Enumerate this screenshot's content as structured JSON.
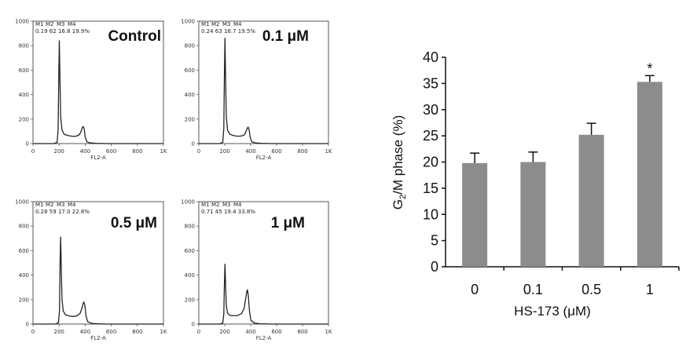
{
  "chart_data": [
    {
      "type": "line",
      "panel": "control",
      "label": "Control",
      "gate_names": [
        "M1",
        "M2",
        "M3",
        "M4"
      ],
      "gate_values": "0.19 62 16.8 19.9%",
      "xlabel": "FL2-A",
      "xlim": [
        0,
        1000
      ],
      "ylim": [
        0,
        1000
      ],
      "xticks": [
        "0",
        "200",
        "400",
        "600",
        "800",
        "1K"
      ],
      "yticks": [
        "0",
        "200",
        "400",
        "600",
        "800",
        "1000"
      ],
      "peaks": {
        "g1_position": 200,
        "g1_height": 840,
        "g2_position": 385,
        "g2_height": 140
      },
      "series": [
        {
          "x": [
            0,
            160,
            185,
            193,
            198,
            202,
            206,
            212,
            222,
            240,
            270,
            300,
            330,
            355,
            368,
            378,
            385,
            392,
            400,
            412,
            440,
            480,
            560,
            700,
            1000
          ],
          "y": [
            0,
            0,
            10,
            120,
            600,
            840,
            560,
            220,
            110,
            75,
            65,
            60,
            60,
            72,
            100,
            130,
            140,
            120,
            55,
            15,
            5,
            2,
            0,
            0,
            0
          ]
        }
      ]
    },
    {
      "type": "line",
      "panel": "0.1uM",
      "label": "0.1 μM",
      "gate_names": [
        "M1",
        "M2",
        "M3",
        "M4"
      ],
      "gate_values": "0.24 63 16.7 19.5%",
      "xlabel": "FL2-A",
      "xlim": [
        0,
        1000
      ],
      "ylim": [
        0,
        1000
      ],
      "xticks": [
        "0",
        "200",
        "400",
        "600",
        "800",
        "1K"
      ],
      "yticks": [
        "0",
        "200",
        "400",
        "600",
        "800",
        "1000"
      ],
      "peaks": {
        "g1_position": 200,
        "g1_height": 860,
        "g2_position": 380,
        "g2_height": 135
      },
      "series": [
        {
          "x": [
            0,
            160,
            185,
            193,
            198,
            202,
            206,
            212,
            222,
            240,
            270,
            300,
            330,
            352,
            365,
            374,
            380,
            388,
            396,
            408,
            440,
            480,
            560,
            700,
            1000
          ],
          "y": [
            0,
            0,
            10,
            120,
            620,
            860,
            570,
            220,
            110,
            75,
            65,
            60,
            62,
            72,
            100,
            125,
            135,
            115,
            55,
            15,
            5,
            2,
            0,
            0,
            0
          ]
        }
      ]
    },
    {
      "type": "line",
      "panel": "0.5uM",
      "label": "0.5 μM",
      "gate_names": [
        "M1",
        "M2",
        "M3",
        "M4"
      ],
      "gate_values": "0.28 59 17.0 22.8%",
      "xlabel": "FL2-A",
      "xlim": [
        0,
        1000
      ],
      "ylim": [
        0,
        1000
      ],
      "xticks": [
        "0",
        "200",
        "400",
        "600",
        "800",
        "1K"
      ],
      "yticks": [
        "0",
        "200",
        "400",
        "600",
        "800",
        "1000"
      ],
      "peaks": {
        "g1_position": 210,
        "g1_height": 710,
        "g2_position": 390,
        "g2_height": 180
      },
      "series": [
        {
          "x": [
            0,
            170,
            195,
            203,
            208,
            212,
            216,
            222,
            232,
            250,
            280,
            310,
            340,
            362,
            375,
            384,
            390,
            398,
            406,
            418,
            450,
            490,
            560,
            700,
            1000
          ],
          "y": [
            0,
            0,
            10,
            110,
            520,
            710,
            480,
            200,
            105,
            75,
            65,
            62,
            68,
            90,
            130,
            165,
            180,
            150,
            70,
            20,
            5,
            2,
            0,
            0,
            0
          ]
        }
      ]
    },
    {
      "type": "line",
      "panel": "1uM",
      "label": "1 μM",
      "gate_names": [
        "M1",
        "M2",
        "M3",
        "M4"
      ],
      "gate_values": "0.71 45 19.4 33.8%",
      "xlabel": "FL2-A",
      "xlim": [
        0,
        1000
      ],
      "ylim": [
        0,
        1000
      ],
      "xticks": [
        "0",
        "200",
        "400",
        "600",
        "800",
        "1K"
      ],
      "yticks": [
        "0",
        "200",
        "400",
        "600",
        "800",
        "1000"
      ],
      "peaks": {
        "g1_position": 200,
        "g1_height": 490,
        "g2_position": 375,
        "g2_height": 280
      },
      "series": [
        {
          "x": [
            0,
            160,
            185,
            193,
            198,
            202,
            206,
            212,
            222,
            240,
            270,
            300,
            330,
            350,
            362,
            370,
            375,
            382,
            390,
            402,
            430,
            470,
            560,
            700,
            1000
          ],
          "y": [
            0,
            0,
            8,
            80,
            360,
            490,
            340,
            150,
            90,
            70,
            68,
            70,
            85,
            130,
            210,
            265,
            280,
            230,
            110,
            30,
            8,
            2,
            0,
            0,
            0
          ]
        }
      ]
    },
    {
      "type": "bar",
      "categories": [
        "0",
        "0.1",
        "0.5",
        "1"
      ],
      "values": [
        19.8,
        20.0,
        25.2,
        35.3
      ],
      "errors": [
        1.9,
        1.9,
        2.2,
        1.2
      ],
      "significance": [
        "",
        "",
        "",
        "*"
      ],
      "xlabel": "HS-173 (μM)",
      "ylabel_main": "G",
      "ylabel_sub": "2",
      "ylabel_rest": "/M  phase (%)",
      "ylim": [
        0,
        40
      ],
      "yticks": [
        "0",
        "5",
        "10",
        "15",
        "20",
        "25",
        "30",
        "35",
        "40"
      ],
      "bar_color": "#8c8c8c",
      "grid": false
    }
  ]
}
